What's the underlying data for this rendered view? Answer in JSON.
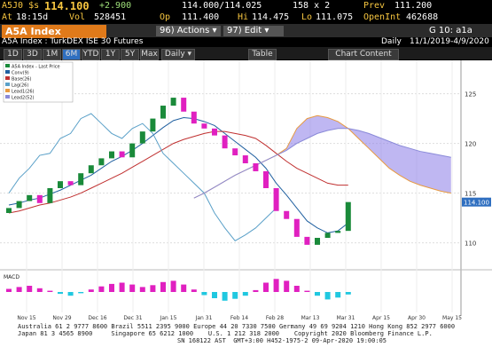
{
  "quote": {
    "ticker": "A5J0 $s",
    "last": "114.100",
    "change": "+2.900",
    "bid_ask": "114.000/114.025",
    "size": "158 x 2",
    "prev_label": "Prev",
    "prev": "111.200"
  },
  "stats": {
    "at_label": "At",
    "time": "18:15d",
    "vol_label": "Vol",
    "vol": "528451",
    "op_label": "Op",
    "op": "111.400",
    "hi_label": "Hi",
    "hi": "114.475",
    "lo_label": "Lo",
    "lo": "111.075",
    "oi_label": "OpenInt",
    "oi": "462688"
  },
  "toolbar": {
    "security": "A5A Index",
    "actions": "96) Actions ▾",
    "edit": "97) Edit ▾",
    "page": "G 10: a1a"
  },
  "subtitle": {
    "name": "A5A Index : TurkDEX ISE 30 Futures",
    "period": "Daily",
    "range": "11/1/2019-4/9/2020"
  },
  "buttons": {
    "ranges": [
      "1D",
      "3D",
      "1M",
      "6M",
      "YTD",
      "1Y",
      "5Y",
      "Max"
    ],
    "freq": "Daily ▾",
    "table": "Table",
    "content": "Chart Content"
  },
  "chart": {
    "type": "candlestick",
    "ylim": [
      108,
      128
    ],
    "yticks": [
      110,
      115,
      120,
      125
    ],
    "grid": true,
    "x_labels": [
      "Nov 15",
      "Nov 29",
      "Dec 16",
      "Dec 31",
      "Jan 15",
      "Jan 31",
      "Feb 14",
      "Feb 28",
      "Mar 13",
      "Mar 31",
      "Apr 15",
      "Apr 30",
      "May 15"
    ],
    "last_price": {
      "value": 114.1,
      "label": "114.100"
    },
    "candles": {
      "name": "A5A Index - Last Price",
      "up_color": "#1a8a3a",
      "down_color": "#e020c0",
      "open": [
        113.0,
        113.5,
        114.2,
        114.8,
        114.0,
        115.5,
        116.2,
        115.8,
        117.0,
        117.8,
        118.5,
        119.2,
        118.6,
        120.0,
        121.2,
        122.5,
        123.8,
        124.6,
        123.2,
        122.0,
        121.5,
        120.8,
        119.5,
        118.8,
        118.0,
        117.2,
        115.5,
        113.2,
        112.4,
        110.6,
        109.8,
        110.5,
        111.0,
        111.2
      ],
      "close": [
        113.5,
        114.2,
        114.8,
        114.0,
        115.5,
        116.2,
        115.8,
        117.0,
        117.8,
        118.5,
        119.2,
        118.6,
        120.0,
        121.2,
        122.5,
        123.8,
        124.6,
        123.2,
        122.0,
        121.5,
        120.8,
        119.5,
        118.8,
        118.0,
        117.2,
        115.5,
        113.2,
        112.4,
        110.6,
        109.8,
        110.5,
        111.0,
        111.2,
        114.1
      ]
    },
    "series": [
      {
        "name": "Conv(9)",
        "color": "#2060a0",
        "values": [
          113.8,
          114.0,
          114.3,
          114.5,
          114.9,
          115.3,
          115.8,
          116.3,
          116.8,
          117.5,
          118.2,
          118.7,
          119.3,
          120.0,
          120.8,
          121.6,
          122.3,
          122.6,
          122.5,
          122.2,
          121.8,
          121.0,
          120.2,
          119.4,
          118.6,
          117.5,
          116.0,
          114.8,
          113.5,
          112.2,
          111.5,
          111.0,
          111.2,
          112.0
        ]
      },
      {
        "name": "Base(26)",
        "color": "#c03030",
        "values": [
          113.0,
          113.2,
          113.5,
          113.8,
          114.0,
          114.3,
          114.6,
          115.0,
          115.5,
          116.0,
          116.5,
          117.0,
          117.6,
          118.2,
          118.8,
          119.4,
          120.0,
          120.4,
          120.7,
          121.0,
          121.2,
          121.2,
          121.0,
          120.8,
          120.5,
          119.8,
          119.0,
          118.2,
          117.5,
          117.0,
          116.5,
          116.0,
          115.8,
          115.8
        ]
      },
      {
        "name": "Lag(26)",
        "color": "#5aa0c8",
        "values": [
          115.0,
          116.5,
          117.5,
          118.8,
          119.0,
          120.5,
          121.0,
          122.5,
          123.0,
          122.0,
          121.0,
          120.5,
          121.5,
          122.0,
          121.0,
          119.0,
          118.0,
          117.0,
          116.0,
          115.0,
          113.0,
          111.5,
          110.2,
          110.8,
          111.5,
          112.5,
          113.5,
          null,
          null,
          null,
          null,
          null,
          null,
          null
        ]
      },
      {
        "name": "Lead1(26)",
        "color": "#e89a40",
        "values": [
          null,
          null,
          null,
          null,
          null,
          null,
          null,
          null,
          null,
          null,
          null,
          null,
          null,
          null,
          null,
          null,
          null,
          null,
          114.5,
          115.0,
          115.6,
          116.2,
          116.8,
          117.3,
          117.8,
          118.3,
          118.8,
          119.5,
          121.5,
          122.5,
          122.8,
          122.6,
          122.2,
          121.5,
          120.5,
          119.5,
          118.5,
          117.5,
          116.8,
          116.2,
          115.8,
          115.5,
          115.2,
          115.0
        ]
      },
      {
        "name": "Lead2(52)",
        "color": "#8a8ad8",
        "values": [
          null,
          null,
          null,
          null,
          null,
          null,
          null,
          null,
          null,
          null,
          null,
          null,
          null,
          null,
          null,
          null,
          null,
          null,
          114.5,
          115.0,
          115.6,
          116.2,
          116.8,
          117.3,
          117.8,
          118.3,
          118.8,
          119.3,
          120.0,
          120.5,
          121.0,
          121.3,
          121.5,
          121.5,
          121.3,
          121.0,
          120.6,
          120.2,
          119.8,
          119.5,
          119.2,
          119.0,
          118.8,
          118.6
        ]
      }
    ],
    "macd": {
      "name": "MACD",
      "ylim": [
        -3,
        3
      ],
      "pos_color": "#e020c0",
      "neg_color": "#20c8e0",
      "values": [
        0.5,
        0.8,
        1.0,
        0.6,
        0.2,
        -0.3,
        -0.6,
        -0.2,
        0.4,
        0.9,
        1.3,
        1.5,
        1.2,
        0.8,
        1.1,
        1.6,
        1.8,
        1.2,
        0.4,
        -0.5,
        -1.0,
        -1.4,
        -1.1,
        -0.6,
        0.3,
        1.5,
        2.1,
        1.8,
        1.0,
        0.2,
        -0.6,
        -1.2,
        -0.9,
        -0.4
      ]
    }
  },
  "footer": [
    "Australia 61 2 9777 8600 Brazil 5511 2395 9000 Europe 44 20 7330 7500 Germany 49 69 9204 1210 Hong Kong 852 2977 6000",
    "Japan 81 3 4565 8900     Singapore 65 6212 1000    U.S. 1 212 318 2000    Copyright 2020 Bloomberg Finance L.P.",
    "SN 168122 AST  GMT+3:00 H452-1975-2 09-Apr-2020 19:00:05"
  ]
}
